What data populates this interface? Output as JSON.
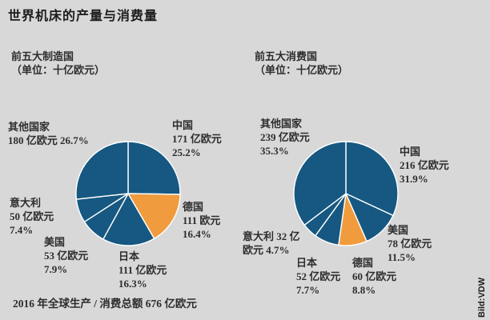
{
  "title": "世界机床的产量与消费量",
  "footer_note": "2016 年全球生产 / 消费总额 676 亿欧元",
  "credit": "Bild:VDW",
  "colors": {
    "background": "#d8d8d8",
    "blue": "#165881",
    "orange": "#f09b3d",
    "divider": "#ffffff",
    "text": "#2d2d2d"
  },
  "chart_data": [
    {
      "type": "pie",
      "id": "production",
      "title": "前五大制造国",
      "unit": "（单位：十亿欧元）",
      "legend_position": "around",
      "slices": [
        {
          "id": "china",
          "name": "中国",
          "value": "171 亿欧元",
          "pct": 25.2,
          "color": "blue",
          "label_lines": [
            "中国",
            "171 亿欧元",
            "25.2%"
          ]
        },
        {
          "id": "germany",
          "name": "德国",
          "value": "111 欧元",
          "pct": 16.4,
          "color": "orange",
          "label_lines": [
            "德国",
            "111 欧元",
            "16.4%"
          ]
        },
        {
          "id": "japan",
          "name": "日本",
          "value": "111 亿欧元",
          "pct": 16.3,
          "color": "blue",
          "label_lines": [
            "日本",
            "111 亿欧元",
            "16.3%"
          ]
        },
        {
          "id": "usa",
          "name": "美国",
          "value": "53 亿欧元",
          "pct": 7.9,
          "color": "blue",
          "label_lines": [
            "美国",
            "53 亿欧元",
            "7.9%"
          ]
        },
        {
          "id": "italy",
          "name": "意大利",
          "value": "50 亿欧元",
          "pct": 7.4,
          "color": "blue",
          "label_lines": [
            "意大利",
            "50 亿欧元",
            "7.4%"
          ]
        },
        {
          "id": "others",
          "name": "其他国家",
          "value": "180 亿欧元",
          "pct": 26.7,
          "color": "blue",
          "label_lines": [
            "其他国家",
            "180 亿欧元 26.7%"
          ]
        }
      ]
    },
    {
      "type": "pie",
      "id": "consumption",
      "title": "前五大消费国",
      "unit": "（单位：十亿欧元）",
      "legend_position": "around",
      "slices": [
        {
          "id": "china",
          "name": "中国",
          "value": "216 亿欧元",
          "pct": 31.9,
          "color": "blue",
          "label_lines": [
            "中国",
            "216 亿欧元",
            "31.9%"
          ]
        },
        {
          "id": "usa",
          "name": "美国",
          "value": "78 亿欧元",
          "pct": 11.5,
          "color": "blue",
          "label_lines": [
            "美国",
            "78 亿欧元",
            "11.5%"
          ]
        },
        {
          "id": "germany",
          "name": "德国",
          "value": "60 亿欧元",
          "pct": 8.8,
          "color": "orange",
          "label_lines": [
            "德国",
            "60 亿欧元",
            "8.8%"
          ]
        },
        {
          "id": "japan",
          "name": "日本",
          "value": "52 亿欧元",
          "pct": 7.7,
          "color": "blue",
          "label_lines": [
            "日本",
            "52 亿欧元",
            "7.7%"
          ]
        },
        {
          "id": "italy",
          "name": "意大利",
          "value": "32 亿欧元",
          "pct": 4.7,
          "color": "blue",
          "label_lines": [
            "意大利 32 亿",
            "欧元 4.7%"
          ]
        },
        {
          "id": "others",
          "name": "其他国家",
          "value": "239 亿欧元",
          "pct": 35.3,
          "color": "blue",
          "label_lines": [
            "其他国家",
            "239 亿欧元",
            "35.3%"
          ]
        }
      ]
    }
  ]
}
